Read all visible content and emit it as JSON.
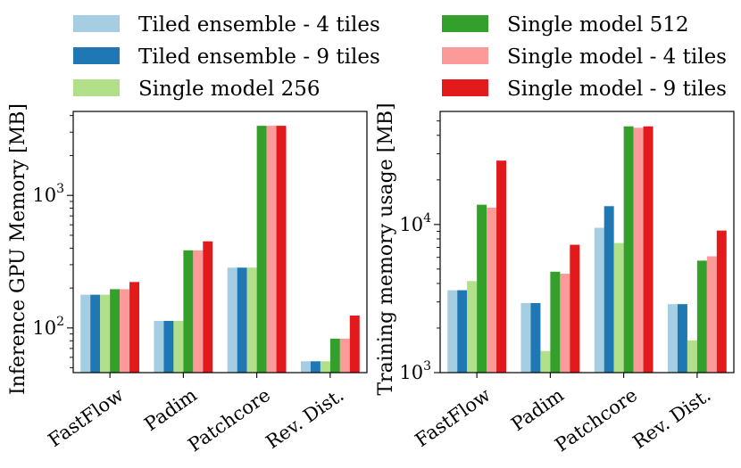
{
  "legend": {
    "left": [
      {
        "label": "Tiled ensemble - 4 tiles",
        "color": "#a6cee3"
      },
      {
        "label": "Tiled ensemble - 9 tiles",
        "color": "#1f78b4"
      },
      {
        "label": "Single model 256",
        "color": "#b2df8a"
      }
    ],
    "right": [
      {
        "label": "Single model 512",
        "color": "#33a02c"
      },
      {
        "label": "Single model - 4 tiles",
        "color": "#fb9a99"
      },
      {
        "label": "Single model - 9 tiles",
        "color": "#e31a1c"
      }
    ]
  },
  "chart_data": [
    {
      "type": "bar",
      "title": "",
      "xlabel": "",
      "ylabel": "Inference GPU Memory [MB]",
      "yscale": "log",
      "ylim": [
        46,
        4300
      ],
      "yticks": [
        {
          "value": 100,
          "label": "10",
          "exp": "2"
        },
        {
          "value": 1000,
          "label": "10",
          "exp": "3"
        }
      ],
      "categories": [
        "FastFlow",
        "Padim",
        "Patchcore",
        "Rev. Dist."
      ],
      "series": [
        {
          "name": "Tiled ensemble - 4 tiles",
          "color": "#a6cee3",
          "values": [
            178,
            113,
            285,
            56
          ]
        },
        {
          "name": "Tiled ensemble - 9 tiles",
          "color": "#1f78b4",
          "values": [
            178,
            113,
            285,
            56
          ]
        },
        {
          "name": "Single model 256",
          "color": "#b2df8a",
          "values": [
            178,
            113,
            285,
            56
          ]
        },
        {
          "name": "Single model 512",
          "color": "#33a02c",
          "values": [
            196,
            385,
            3350,
            83
          ]
        },
        {
          "name": "Single model - 4 tiles",
          "color": "#fb9a99",
          "values": [
            196,
            385,
            3350,
            83
          ]
        },
        {
          "name": "Single model - 9 tiles",
          "color": "#e31a1c",
          "values": [
            222,
            450,
            3350,
            124
          ]
        }
      ]
    },
    {
      "type": "bar",
      "title": "",
      "xlabel": "",
      "ylabel": "Training memory usage [MB]",
      "yscale": "log",
      "ylim": [
        1000,
        58000
      ],
      "yticks": [
        {
          "value": 1000,
          "label": "10",
          "exp": "3"
        },
        {
          "value": 10000,
          "label": "10",
          "exp": "4"
        }
      ],
      "categories": [
        "FastFlow",
        "Padim",
        "Patchcore",
        "Rev. Dist."
      ],
      "series": [
        {
          "name": "Tiled ensemble - 4 tiles",
          "color": "#a6cee3",
          "values": [
            3600,
            2950,
            9500,
            2900
          ]
        },
        {
          "name": "Tiled ensemble - 9 tiles",
          "color": "#1f78b4",
          "values": [
            3600,
            2950,
            13300,
            2900
          ]
        },
        {
          "name": "Single model 256",
          "color": "#b2df8a",
          "values": [
            4150,
            1400,
            7500,
            1650
          ]
        },
        {
          "name": "Single model 512",
          "color": "#33a02c",
          "values": [
            13600,
            4800,
            46000,
            5700
          ]
        },
        {
          "name": "Single model - 4 tiles",
          "color": "#fb9a99",
          "values": [
            13000,
            4650,
            45000,
            6100
          ]
        },
        {
          "name": "Single model - 9 tiles",
          "color": "#e31a1c",
          "values": [
            27000,
            7300,
            46000,
            9100
          ]
        }
      ]
    }
  ]
}
